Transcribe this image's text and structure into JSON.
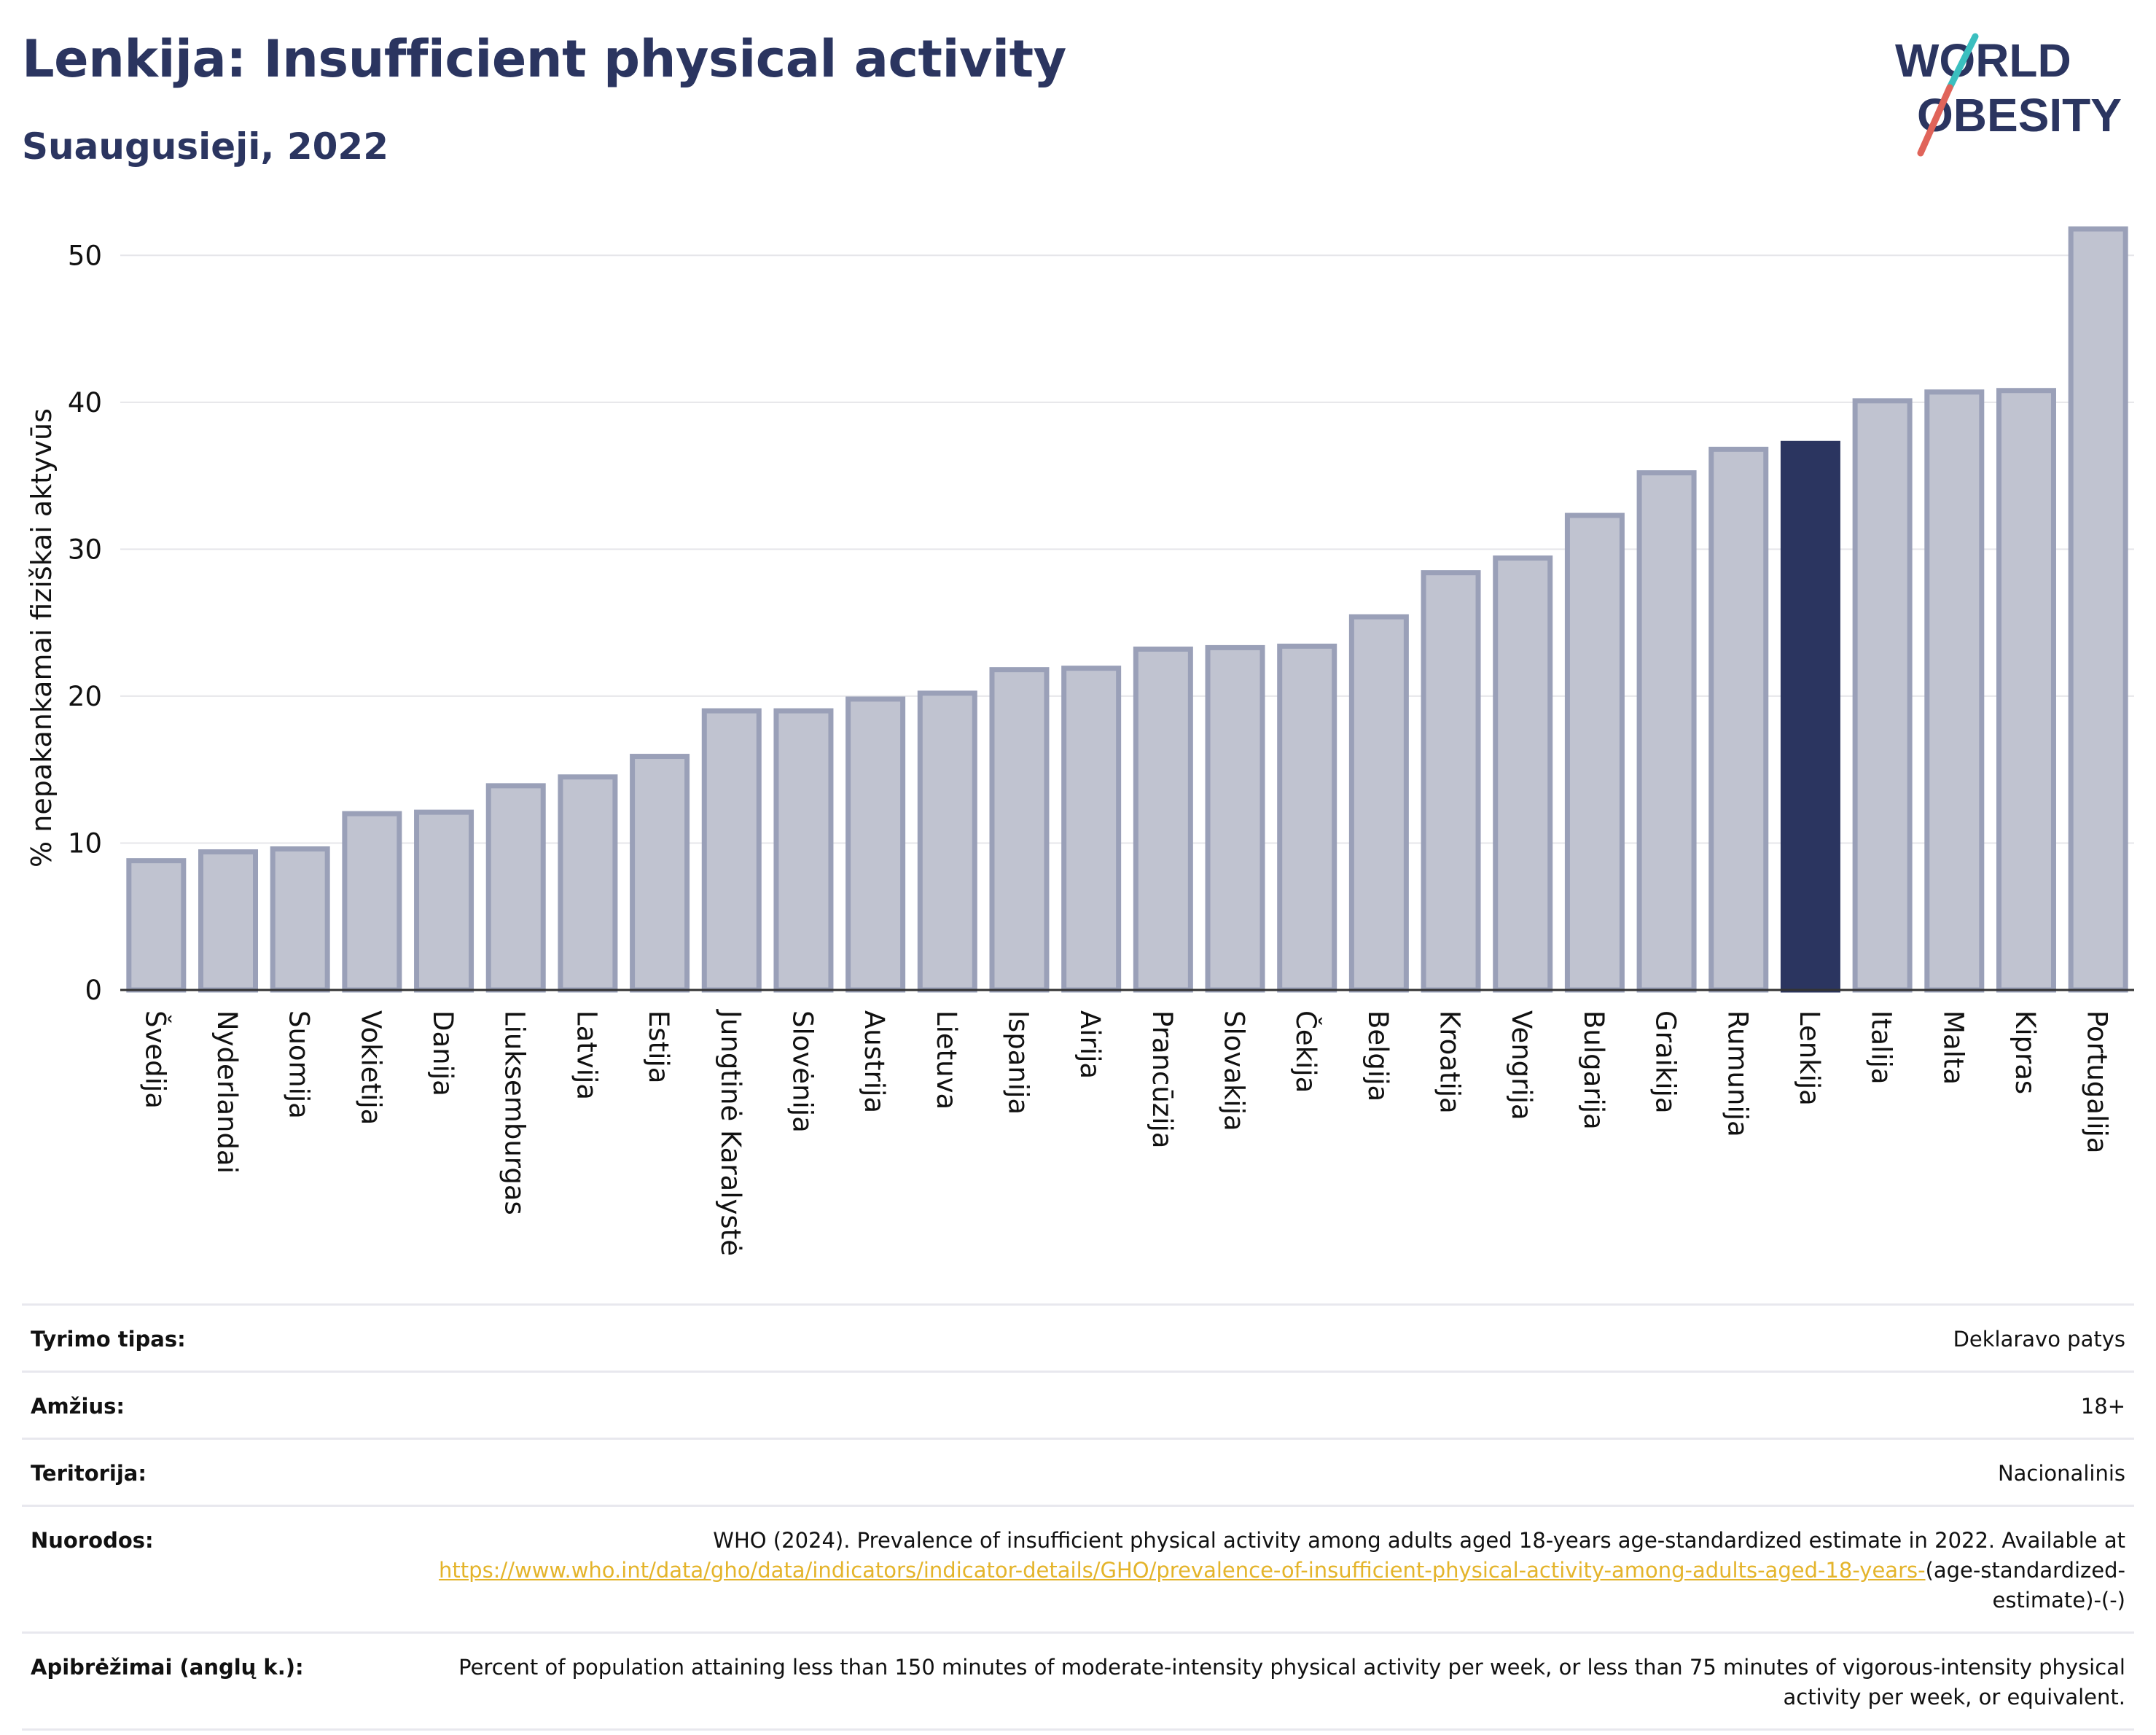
{
  "header": {
    "title": "Lenkija: Insufficient physical activity",
    "subtitle": "Suaugusieji, 2022"
  },
  "logo": {
    "line1": "WORLD",
    "line2": "OBESITY"
  },
  "chart_data": {
    "type": "bar",
    "ylabel": "% nepakankamai fiziškai aktyvūs",
    "xlabel": "",
    "ylim": [
      0,
      52
    ],
    "yticks": [
      0,
      10,
      20,
      30,
      40,
      50
    ],
    "grid": true,
    "highlight": "Lenkija",
    "categories": [
      "Švedija",
      "Nyderlandai",
      "Suomija",
      "Vokietija",
      "Danija",
      "Liuksemburgas",
      "Latvija",
      "Estija",
      "Jungtinė Karalystė",
      "Slovėnija",
      "Austrija",
      "Lietuva",
      "Ispanija",
      "Airija",
      "Prancūzija",
      "Slovakija",
      "Čekija",
      "Belgija",
      "Kroatija",
      "Vengrija",
      "Bulgarija",
      "Graikija",
      "Rumunija",
      "Lenkija",
      "Italija",
      "Malta",
      "Kipras",
      "Portugalija"
    ],
    "values": [
      8.8,
      9.4,
      9.6,
      12.0,
      12.1,
      13.9,
      14.5,
      15.9,
      19.0,
      19.0,
      19.8,
      20.2,
      21.8,
      21.9,
      23.2,
      23.3,
      23.4,
      25.4,
      28.4,
      29.4,
      32.3,
      35.2,
      36.8,
      37.2,
      40.1,
      40.7,
      40.8,
      51.8
    ],
    "colors": {
      "bar": "#c0c3d0",
      "bar_border": "#9aa0b8",
      "highlight": "#2b3560"
    }
  },
  "info": {
    "rows": [
      {
        "label": "Tyrimo tipas:",
        "value": "Deklaravo patys"
      },
      {
        "label": "Amžius:",
        "value": "18+"
      },
      {
        "label": "Teritorija:",
        "value": "Nacionalinis"
      },
      {
        "label": "Nuorodos:",
        "value": "WHO (2024). Prevalence of insufficient physical activity among adults aged 18-years age-standardized estimate in 2022. Available at",
        "link": "https://www.who.int/data/gho/data/indicators/indicator-details/GHO/prevalence-of-insufficient-physical-activity-among-adults-aged-18-years-",
        "suffix": "(age-standardized-estimate)-(-)"
      },
      {
        "label": "Apibrėžimai (anglų k.):",
        "value": "Percent of population attaining less than 150 minutes of moderate-intensity physical activity per week, or less than 75 minutes of vigorous-intensity physical activity per week, or equivalent."
      }
    ]
  }
}
